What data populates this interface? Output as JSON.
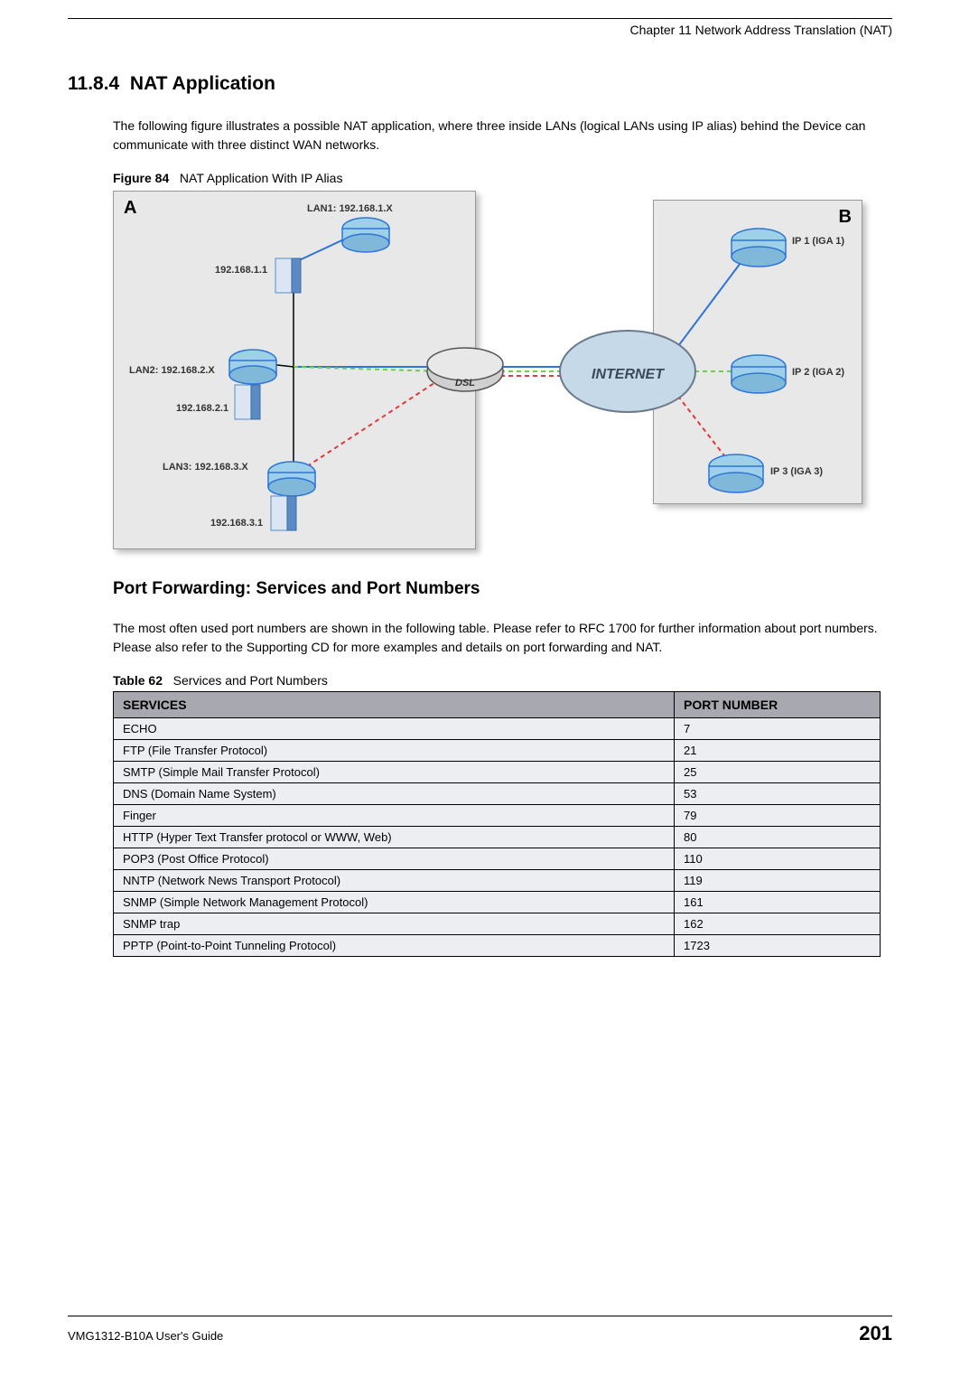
{
  "header": {
    "chapter": "Chapter 11 Network Address Translation (NAT)"
  },
  "section": {
    "number": "11.8.4",
    "title": "NAT Application",
    "intro": "The following figure illustrates a possible NAT application, where three inside LANs (logical LANs using IP alias) behind the Device can communicate with three distinct WAN networks."
  },
  "figure": {
    "label": "Figure 84",
    "caption": "NAT Application With IP Alias",
    "panel_a_label": "A",
    "panel_b_label": "B",
    "labels": {
      "lan1": "LAN1: 192.168.1.X",
      "ip1": "192.168.1.1",
      "lan2": "LAN2: 192.168.2.X",
      "ip2": "192.168.2.1",
      "lan3": "LAN3: 192.168.3.X",
      "ip3": "192.168.3.1",
      "dsl": "DSL",
      "internet": "INTERNET",
      "iga1": "IP 1 (IGA 1)",
      "iga2": "IP 2 (IGA 2)",
      "iga3": "IP 3 (IGA 3)"
    },
    "colors": {
      "panel_bg": "#e8e8e8",
      "line_blue": "#2e74d9",
      "line_green": "#6fcf4a",
      "line_red": "#e03a3a",
      "router_blue": "#9ed0ea",
      "server_blue": "#5a8bc5",
      "cloud_fill": "#c5d9e8",
      "dsl_fill": "#d0d0d0"
    }
  },
  "portforward": {
    "heading": "Port Forwarding: Services and Port Numbers",
    "intro": "The most often used port numbers are shown in the following table. Please refer to RFC 1700 for further information about port numbers. Please also refer to the Supporting CD for more examples and details on port forwarding and NAT."
  },
  "table": {
    "label": "Table 62",
    "caption": "Services and Port Numbers",
    "columns": [
      "SERVICES",
      "PORT NUMBER"
    ],
    "rows": [
      [
        "ECHO",
        "7"
      ],
      [
        "FTP (File Transfer Protocol)",
        "21"
      ],
      [
        "SMTP (Simple Mail Transfer Protocol)",
        "25"
      ],
      [
        "DNS (Domain Name System)",
        "53"
      ],
      [
        "Finger",
        "79"
      ],
      [
        "HTTP (Hyper Text Transfer protocol or WWW, Web)",
        "80"
      ],
      [
        "POP3 (Post Office Protocol)",
        "110"
      ],
      [
        "NNTP (Network News Transport Protocol)",
        "119"
      ],
      [
        "SNMP (Simple Network Management Protocol)",
        "161"
      ],
      [
        "SNMP trap",
        "162"
      ],
      [
        "PPTP (Point-to-Point Tunneling Protocol)",
        "1723"
      ]
    ]
  },
  "footer": {
    "guide": "VMG1312-B10A User's Guide",
    "page": "201"
  }
}
